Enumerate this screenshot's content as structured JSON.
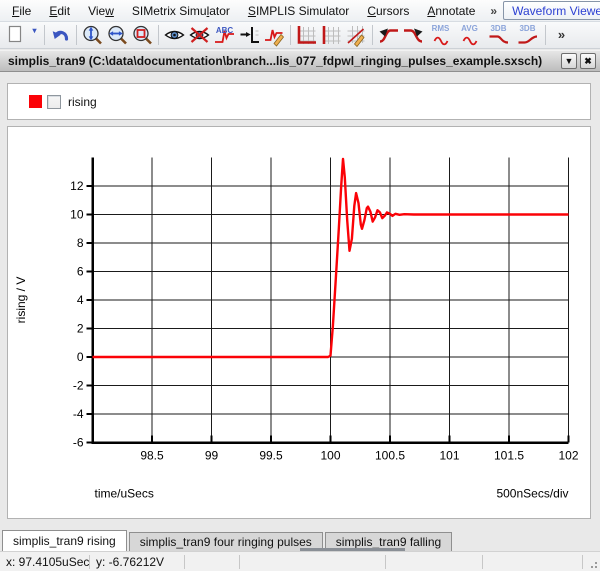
{
  "menu": {
    "items": [
      {
        "label": "File",
        "u": 0
      },
      {
        "label": "Edit",
        "u": 0
      },
      {
        "label": "View",
        "u": 3
      },
      {
        "label": "SIMetrix Simulator",
        "u": 13
      },
      {
        "label": "SIMPLIS Simulator",
        "u": 0
      },
      {
        "label": "Cursors",
        "u": 0
      },
      {
        "label": "Annotate",
        "u": 0
      }
    ],
    "overflow": "»",
    "viewer_combo": {
      "label": "Waveform Viewer",
      "arrow": "▼"
    }
  },
  "toolbar": {
    "buttons": [
      {
        "name": "new-graph-button",
        "icon": "page"
      },
      {
        "name": "new-graph-dropdown",
        "icon": "none",
        "text": "▾",
        "style": "narrow-dark"
      },
      {
        "sep": true
      },
      {
        "name": "undo-button",
        "icon": "undo"
      },
      {
        "sep": true
      },
      {
        "name": "zoom-y-fit-button",
        "icon": "zoom-y"
      },
      {
        "name": "zoom-x-fit-button",
        "icon": "zoom-x"
      },
      {
        "name": "zoom-area-button",
        "icon": "zoom-area"
      },
      {
        "sep": true
      },
      {
        "name": "show-curve-button",
        "icon": "eye"
      },
      {
        "name": "hide-curve-button",
        "icon": "eye-x"
      },
      {
        "name": "label-curve-button",
        "icon": "curve",
        "text": "ABC",
        "style": "dark"
      },
      {
        "name": "stack-axes-button",
        "icon": "axis-arrow"
      },
      {
        "name": "edit-curve-button",
        "icon": "curve-pencil"
      },
      {
        "sep": true
      },
      {
        "name": "add-grid-button",
        "icon": "grid-axes"
      },
      {
        "name": "add-grid-divider-button",
        "icon": "grid-vline"
      },
      {
        "name": "edit-grid-button",
        "icon": "grid-pencil"
      },
      {
        "sep": true
      },
      {
        "name": "move-curve-up-button",
        "icon": "curve-arrow-l"
      },
      {
        "name": "move-curve-down-button",
        "icon": "curve-arrow-r"
      },
      {
        "name": "rms-button",
        "icon": "wave",
        "text": "RMS",
        "style": "wide"
      },
      {
        "name": "avg-button",
        "icon": "wave",
        "text": "AVG",
        "style": "wide"
      },
      {
        "name": "db3-lowpass-button",
        "icon": "fall",
        "text": "3DB",
        "style": "wide"
      },
      {
        "name": "db3-highpass-button",
        "icon": "rise",
        "text": "3DB",
        "style": "wide"
      },
      {
        "sep": true
      },
      {
        "name": "toolbar-overflow-button",
        "icon": "none",
        "text": "»",
        "style": "big"
      }
    ]
  },
  "window": {
    "title": "simplis_tran9 (C:\\data\\documentation\\branch...lis_077_fdpwl_ringing_pulses_example.sxsch)",
    "shade_glyph": "▼",
    "close_glyph": "✖"
  },
  "legend": {
    "label": "rising",
    "checked": false,
    "swatch_color": "#fb0207"
  },
  "chart_data": {
    "type": "line",
    "title": "",
    "xlabel": "time/uSecs",
    "x_div_label": "500nSecs/div",
    "ylabel": "rising / V",
    "xlim": [
      98,
      102
    ],
    "ylim": [
      -6,
      14
    ],
    "x_ticks": [
      98.5,
      99,
      99.5,
      100,
      100.5,
      101,
      101.5,
      102
    ],
    "x_tick_labels": [
      "98.5",
      "99",
      "99.5",
      "100",
      "100.5",
      "101",
      "101.5",
      "102"
    ],
    "y_ticks": [
      12,
      10,
      8,
      6,
      4,
      2,
      0,
      -2,
      -4,
      -6
    ],
    "y_tick_labels": [
      "12",
      "10",
      "8",
      "6",
      "4",
      "2",
      "0",
      "-2",
      "-4",
      "-6"
    ],
    "grid": true,
    "grid_color": "#1a1a1a",
    "series": [
      {
        "name": "rising",
        "color": "#fb0207",
        "points": [
          [
            98.0,
            0
          ],
          [
            99.98,
            0
          ],
          [
            100.0,
            0.1
          ],
          [
            100.02,
            2.2
          ],
          [
            100.045,
            5.6
          ],
          [
            100.07,
            9.0
          ],
          [
            100.09,
            12.0
          ],
          [
            100.105,
            13.9
          ],
          [
            100.12,
            12.6
          ],
          [
            100.14,
            9.6
          ],
          [
            100.16,
            7.45
          ],
          [
            100.18,
            8.3
          ],
          [
            100.2,
            10.6
          ],
          [
            100.215,
            11.5
          ],
          [
            100.235,
            10.8
          ],
          [
            100.255,
            9.3
          ],
          [
            100.265,
            9.0
          ],
          [
            100.285,
            9.6
          ],
          [
            100.305,
            10.45
          ],
          [
            100.315,
            10.55
          ],
          [
            100.335,
            10.2
          ],
          [
            100.355,
            9.5
          ],
          [
            100.375,
            9.8
          ],
          [
            100.395,
            10.3
          ],
          [
            100.415,
            10.15
          ],
          [
            100.435,
            9.75
          ],
          [
            100.455,
            9.9
          ],
          [
            100.475,
            10.15
          ],
          [
            100.5,
            10.05
          ],
          [
            100.52,
            9.9
          ],
          [
            100.545,
            10.05
          ],
          [
            100.58,
            9.98
          ],
          [
            100.62,
            10.02
          ],
          [
            100.7,
            10.0
          ],
          [
            102.0,
            10.0
          ]
        ]
      }
    ]
  },
  "tabs": [
    {
      "label": "simplis_tran9 rising",
      "active": true
    },
    {
      "label": "simplis_tran9 four ringing pulses",
      "active": false
    },
    {
      "label": "simplis_tran9 falling",
      "active": false
    }
  ],
  "status": {
    "cells": [
      "x: 97.4105uSecs",
      "y: -6.76212V",
      "",
      "",
      "",
      ""
    ]
  }
}
